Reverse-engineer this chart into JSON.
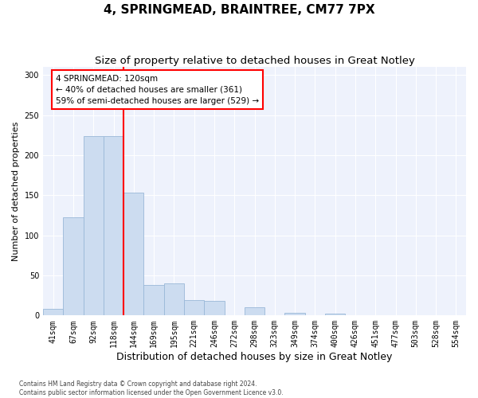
{
  "title": "4, SPRINGMEAD, BRAINTREE, CM77 7PX",
  "subtitle": "Size of property relative to detached houses in Great Notley",
  "xlabel": "Distribution of detached houses by size in Great Notley",
  "ylabel": "Number of detached properties",
  "bin_labels": [
    "41sqm",
    "67sqm",
    "92sqm",
    "118sqm",
    "144sqm",
    "169sqm",
    "195sqm",
    "221sqm",
    "246sqm",
    "272sqm",
    "298sqm",
    "323sqm",
    "349sqm",
    "374sqm",
    "400sqm",
    "426sqm",
    "451sqm",
    "477sqm",
    "503sqm",
    "528sqm",
    "554sqm"
  ],
  "bar_values": [
    8,
    122,
    224,
    224,
    153,
    38,
    40,
    19,
    18,
    0,
    10,
    0,
    3,
    0,
    2,
    0,
    0,
    0,
    0,
    0,
    0
  ],
  "bar_color": "#ccdcf0",
  "bar_edgecolor": "#9ab8d8",
  "vline_bar_index": 3,
  "vline_color": "red",
  "annotation_text": "4 SPRINGMEAD: 120sqm\n← 40% of detached houses are smaller (361)\n59% of semi-detached houses are larger (529) →",
  "annotation_box_color": "white",
  "annotation_box_edgecolor": "red",
  "ylim": [
    0,
    310
  ],
  "yticks": [
    0,
    50,
    100,
    150,
    200,
    250,
    300
  ],
  "footer_line1": "Contains HM Land Registry data © Crown copyright and database right 2024.",
  "footer_line2": "Contains public sector information licensed under the Open Government Licence v3.0.",
  "plot_bg_color": "#eef2fc",
  "fig_bg_color": "#ffffff",
  "title_fontsize": 11,
  "subtitle_fontsize": 9.5,
  "xlabel_fontsize": 9,
  "ylabel_fontsize": 8,
  "tick_fontsize": 7,
  "annot_fontsize": 7.5,
  "footer_fontsize": 5.5
}
